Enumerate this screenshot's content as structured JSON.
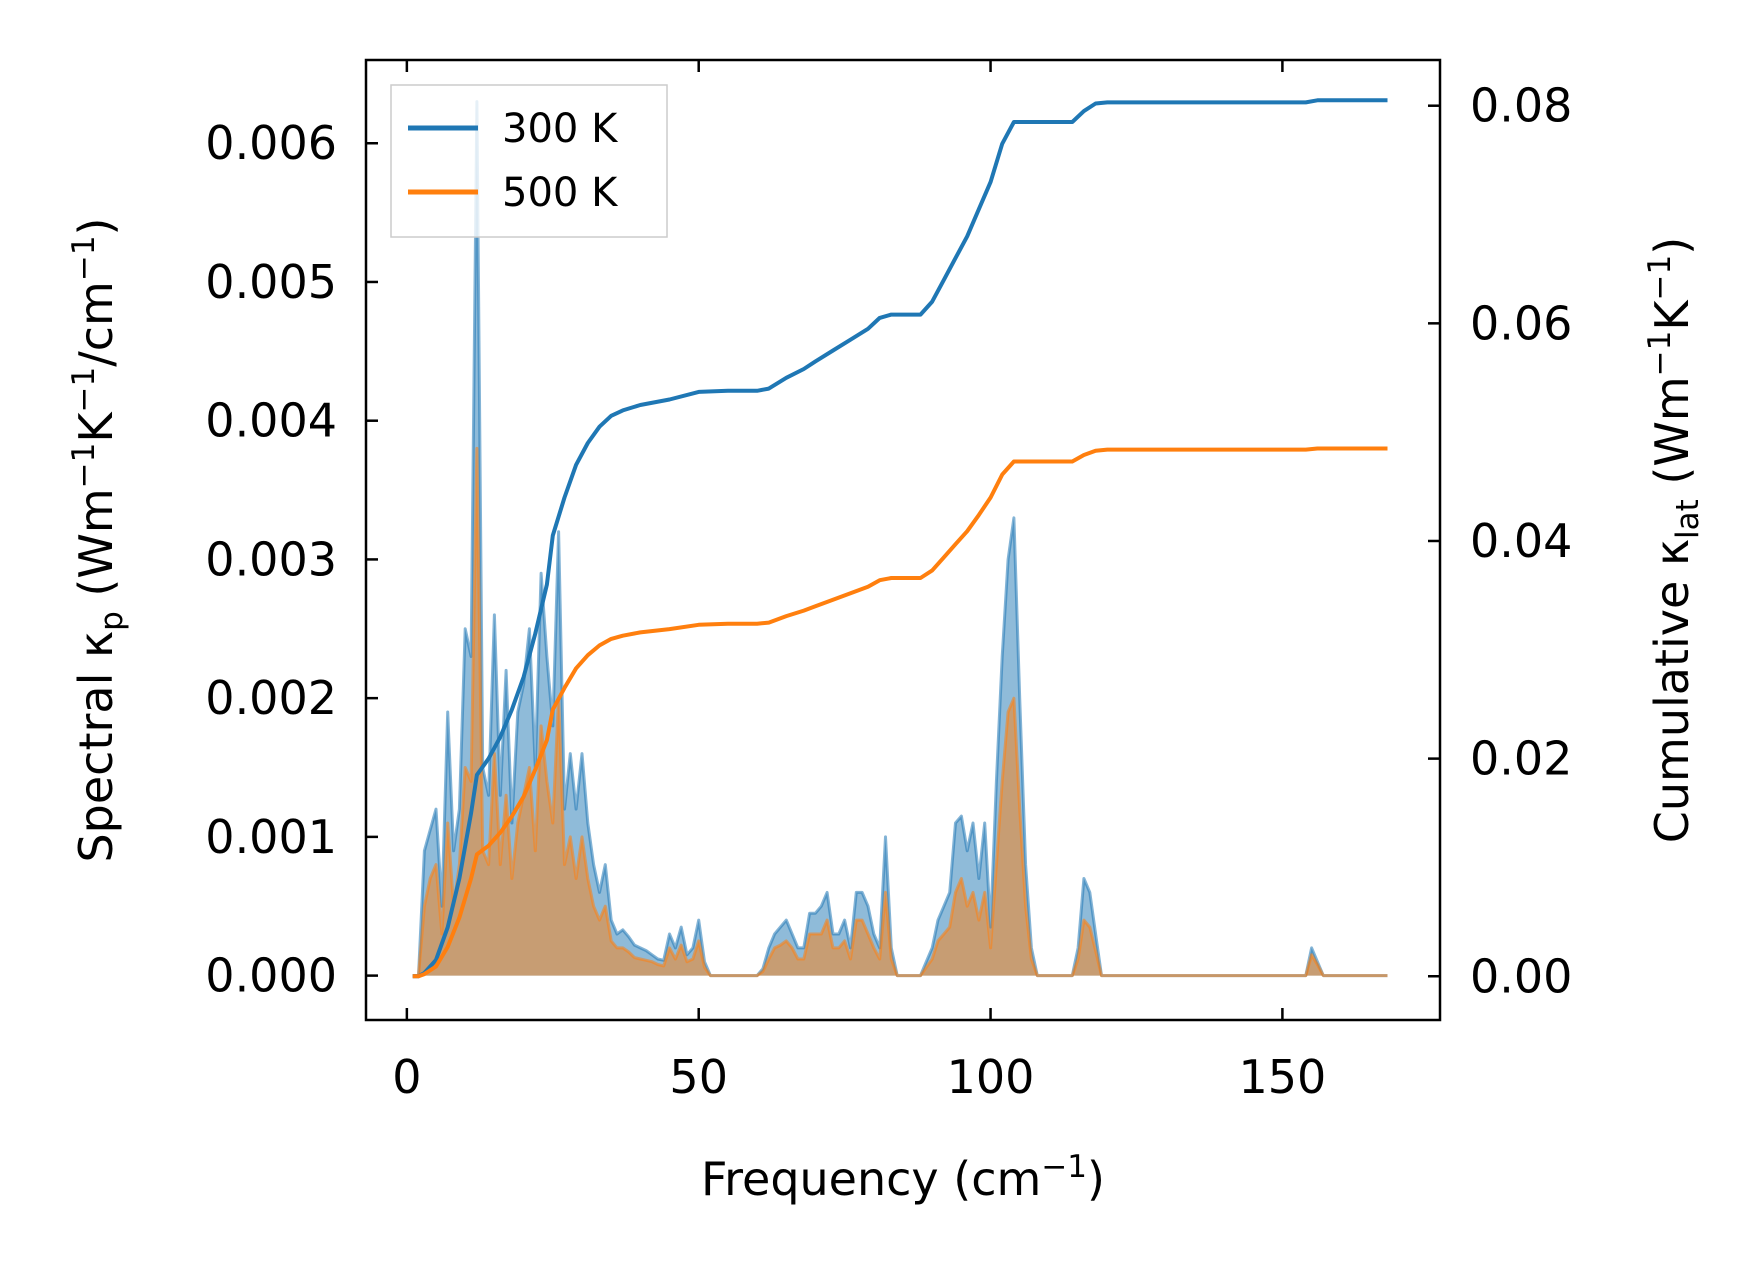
{
  "chart_data": {
    "type": "line",
    "xlabel": {
      "text": "Frequency (cm",
      "sup": "−1",
      "tail": ")"
    },
    "ylabel_left": {
      "t1": "Spectral κ",
      "s1": "p",
      "t2": " (Wm",
      "p1": "−1",
      "t3": "K",
      "p2": "−1",
      "t4": "/cm",
      "p3": "−1",
      "t5": ")"
    },
    "ylabel_right": {
      "t1": "Cumulative κ",
      "s1": "lat",
      "t2": " (Wm",
      "p1": "−1",
      "t3": "K",
      "p2": "−1",
      "t4": ")"
    },
    "xlim": [
      -7,
      177
    ],
    "ylim_left": [
      -0.00032,
      0.0066
    ],
    "ylim_right": [
      -0.00402,
      0.0842
    ],
    "x_ticks": [
      0,
      50,
      100,
      150
    ],
    "x_tick_labels": [
      "0",
      "50",
      "100",
      "150"
    ],
    "y_left_ticks": [
      0,
      0.001,
      0.002,
      0.003,
      0.004,
      0.005,
      0.006
    ],
    "y_left_tick_labels": [
      "0.000",
      "0.001",
      "0.002",
      "0.003",
      "0.004",
      "0.005",
      "0.006"
    ],
    "y_right_ticks": [
      0,
      0.02,
      0.04,
      0.06,
      0.08
    ],
    "y_right_tick_labels": [
      "0.00",
      "0.02",
      "0.04",
      "0.06",
      "0.08"
    ],
    "legend": {
      "placement": "top-left",
      "entries": [
        {
          "label": "300 K",
          "color": "#1f77b4"
        },
        {
          "label": "500 K",
          "color": "#ff7f0e"
        }
      ]
    },
    "spectral_300K": [
      [
        1,
        0
      ],
      [
        2,
        0
      ],
      [
        3,
        0.0009
      ],
      [
        4,
        0.00105
      ],
      [
        5,
        0.0012
      ],
      [
        6,
        0.0005
      ],
      [
        7,
        0.0019
      ],
      [
        8,
        0.0009
      ],
      [
        9,
        0.0012
      ],
      [
        10,
        0.0025
      ],
      [
        11,
        0.0023
      ],
      [
        12,
        0.0063
      ],
      [
        13,
        0.0015
      ],
      [
        14,
        0.0013
      ],
      [
        15,
        0.0026
      ],
      [
        16,
        0.0013
      ],
      [
        17,
        0.0022
      ],
      [
        18,
        0.0011
      ],
      [
        19,
        0.0019
      ],
      [
        20,
        0.0021
      ],
      [
        21,
        0.0025
      ],
      [
        22,
        0.0015
      ],
      [
        23,
        0.0029
      ],
      [
        24,
        0.0023
      ],
      [
        25,
        0.0018
      ],
      [
        26,
        0.0032
      ],
      [
        27,
        0.0012
      ],
      [
        28,
        0.0016
      ],
      [
        29,
        0.0012
      ],
      [
        30,
        0.0016
      ],
      [
        31,
        0.0011
      ],
      [
        32,
        0.0008
      ],
      [
        33,
        0.0006
      ],
      [
        34,
        0.0008
      ],
      [
        35,
        0.0004
      ],
      [
        36,
        0.0003
      ],
      [
        37,
        0.00033
      ],
      [
        38,
        0.00028
      ],
      [
        39,
        0.00022
      ],
      [
        40,
        0.0002
      ],
      [
        41,
        0.00018
      ],
      [
        42,
        0.00015
      ],
      [
        43,
        0.00012
      ],
      [
        44,
        0.00011
      ],
      [
        45,
        0.0003
      ],
      [
        46,
        0.0002
      ],
      [
        47,
        0.00035
      ],
      [
        48,
        0.00015
      ],
      [
        49,
        0.0002
      ],
      [
        50,
        0.0004
      ],
      [
        51,
        0.0001
      ],
      [
        52,
        0
      ],
      [
        60,
        0
      ],
      [
        61,
        5e-05
      ],
      [
        62,
        0.0002
      ],
      [
        63,
        0.0003
      ],
      [
        64,
        0.00035
      ],
      [
        65,
        0.0004
      ],
      [
        66,
        0.0003
      ],
      [
        67,
        0.0002
      ],
      [
        68,
        0.0002
      ],
      [
        69,
        0.00045
      ],
      [
        70,
        0.00045
      ],
      [
        71,
        0.0005
      ],
      [
        72,
        0.0006
      ],
      [
        73,
        0.0003
      ],
      [
        74,
        0.0003
      ],
      [
        75,
        0.0004
      ],
      [
        76,
        0.0002
      ],
      [
        77,
        0.0006
      ],
      [
        78,
        0.0006
      ],
      [
        79,
        0.0005
      ],
      [
        80,
        0.0003
      ],
      [
        81,
        0.0002
      ],
      [
        82,
        0.001
      ],
      [
        83,
        0.0002
      ],
      [
        84,
        0
      ],
      [
        88,
        0
      ],
      [
        89,
        0.0001
      ],
      [
        90,
        0.0002
      ],
      [
        91,
        0.0004
      ],
      [
        92,
        0.0005
      ],
      [
        93,
        0.0006
      ],
      [
        94,
        0.0011
      ],
      [
        95,
        0.00115
      ],
      [
        96,
        0.0009
      ],
      [
        97,
        0.0011
      ],
      [
        98,
        0.0007
      ],
      [
        99,
        0.0011
      ],
      [
        100,
        0.00035
      ],
      [
        101,
        0.0014
      ],
      [
        102,
        0.0023
      ],
      [
        103,
        0.003
      ],
      [
        104,
        0.0033
      ],
      [
        105,
        0.002
      ],
      [
        106,
        0.0008
      ],
      [
        107,
        0.0002
      ],
      [
        108,
        0
      ],
      [
        114,
        0
      ],
      [
        115,
        0.0002
      ],
      [
        116,
        0.0007
      ],
      [
        117,
        0.0006
      ],
      [
        118,
        0.0003
      ],
      [
        119,
        0
      ],
      [
        154,
        0
      ],
      [
        155,
        0.0002
      ],
      [
        156,
        0.0001
      ],
      [
        157,
        0
      ],
      [
        168,
        0
      ]
    ],
    "spectral_500K": [
      [
        1,
        0
      ],
      [
        2,
        0
      ],
      [
        3,
        0.0005
      ],
      [
        4,
        0.0007
      ],
      [
        5,
        0.0008
      ],
      [
        6,
        0.0003
      ],
      [
        7,
        0.0011
      ],
      [
        8,
        0.0005
      ],
      [
        9,
        0.0008
      ],
      [
        10,
        0.0015
      ],
      [
        11,
        0.0014
      ],
      [
        12,
        0.0038
      ],
      [
        13,
        0.0009
      ],
      [
        14,
        0.0008
      ],
      [
        15,
        0.0016
      ],
      [
        16,
        0.0008
      ],
      [
        17,
        0.0013
      ],
      [
        18,
        0.0007
      ],
      [
        19,
        0.0011
      ],
      [
        20,
        0.0013
      ],
      [
        21,
        0.0015
      ],
      [
        22,
        0.0009
      ],
      [
        23,
        0.0018
      ],
      [
        24,
        0.0014
      ],
      [
        25,
        0.0011
      ],
      [
        26,
        0.002
      ],
      [
        27,
        0.0008
      ],
      [
        28,
        0.001
      ],
      [
        29,
        0.0007
      ],
      [
        30,
        0.001
      ],
      [
        31,
        0.0007
      ],
      [
        32,
        0.0005
      ],
      [
        33,
        0.0004
      ],
      [
        34,
        0.0005
      ],
      [
        35,
        0.00025
      ],
      [
        36,
        0.0002
      ],
      [
        37,
        0.0002
      ],
      [
        38,
        0.00017
      ],
      [
        39,
        0.00013
      ],
      [
        40,
        0.00012
      ],
      [
        41,
        0.00011
      ],
      [
        42,
        0.0001
      ],
      [
        43,
        8e-05
      ],
      [
        44,
        7e-05
      ],
      [
        45,
        0.0002
      ],
      [
        46,
        0.00012
      ],
      [
        47,
        0.00022
      ],
      [
        48,
        0.0001
      ],
      [
        49,
        0.00012
      ],
      [
        50,
        0.00025
      ],
      [
        51,
        6e-05
      ],
      [
        52,
        0
      ],
      [
        60,
        0
      ],
      [
        61,
        3e-05
      ],
      [
        62,
        0.00012
      ],
      [
        63,
        0.0002
      ],
      [
        64,
        0.00022
      ],
      [
        65,
        0.00025
      ],
      [
        66,
        0.0002
      ],
      [
        67,
        0.00012
      ],
      [
        68,
        0.00012
      ],
      [
        69,
        0.0003
      ],
      [
        70,
        0.0003
      ],
      [
        71,
        0.0003
      ],
      [
        72,
        0.0004
      ],
      [
        73,
        0.0002
      ],
      [
        74,
        0.0002
      ],
      [
        75,
        0.00025
      ],
      [
        76,
        0.00012
      ],
      [
        77,
        0.0004
      ],
      [
        78,
        0.0004
      ],
      [
        79,
        0.0003
      ],
      [
        80,
        0.0002
      ],
      [
        81,
        0.00012
      ],
      [
        82,
        0.0006
      ],
      [
        83,
        0.00012
      ],
      [
        84,
        0
      ],
      [
        88,
        0
      ],
      [
        89,
        6e-05
      ],
      [
        90,
        0.00012
      ],
      [
        91,
        0.00025
      ],
      [
        92,
        0.0003
      ],
      [
        93,
        0.00035
      ],
      [
        94,
        0.0006
      ],
      [
        95,
        0.0007
      ],
      [
        96,
        0.0005
      ],
      [
        97,
        0.0006
      ],
      [
        98,
        0.0004
      ],
      [
        99,
        0.0006
      ],
      [
        100,
        0.0002
      ],
      [
        101,
        0.0008
      ],
      [
        102,
        0.0014
      ],
      [
        103,
        0.0019
      ],
      [
        104,
        0.002
      ],
      [
        105,
        0.0012
      ],
      [
        106,
        0.0005
      ],
      [
        107,
        0.00012
      ],
      [
        108,
        0
      ],
      [
        114,
        0
      ],
      [
        115,
        0.00012
      ],
      [
        116,
        0.0004
      ],
      [
        117,
        0.00035
      ],
      [
        118,
        0.00018
      ],
      [
        119,
        0
      ],
      [
        154,
        0
      ],
      [
        155,
        0.00015
      ],
      [
        156,
        8e-05
      ],
      [
        157,
        0
      ],
      [
        168,
        0
      ]
    ],
    "cumulative_300K": [
      [
        1,
        0
      ],
      [
        2,
        0
      ],
      [
        3,
        0.0003
      ],
      [
        5,
        0.0015
      ],
      [
        7,
        0.0045
      ],
      [
        9,
        0.009
      ],
      [
        11,
        0.015
      ],
      [
        12,
        0.0185
      ],
      [
        14,
        0.02
      ],
      [
        16,
        0.022
      ],
      [
        18,
        0.0245
      ],
      [
        20,
        0.0275
      ],
      [
        22,
        0.0315
      ],
      [
        24,
        0.036
      ],
      [
        25,
        0.0405
      ],
      [
        27,
        0.044
      ],
      [
        29,
        0.047
      ],
      [
        31,
        0.049
      ],
      [
        33,
        0.0505
      ],
      [
        35,
        0.0515
      ],
      [
        37,
        0.052
      ],
      [
        40,
        0.0525
      ],
      [
        45,
        0.053
      ],
      [
        50,
        0.0537
      ],
      [
        55,
        0.0538
      ],
      [
        60,
        0.0538
      ],
      [
        62,
        0.054
      ],
      [
        65,
        0.055
      ],
      [
        68,
        0.0558
      ],
      [
        70,
        0.0565
      ],
      [
        73,
        0.0575
      ],
      [
        76,
        0.0585
      ],
      [
        79,
        0.0595
      ],
      [
        81,
        0.0605
      ],
      [
        83,
        0.0608
      ],
      [
        85,
        0.0608
      ],
      [
        88,
        0.0608
      ],
      [
        90,
        0.062
      ],
      [
        92,
        0.064
      ],
      [
        94,
        0.066
      ],
      [
        96,
        0.068
      ],
      [
        98,
        0.0705
      ],
      [
        100,
        0.073
      ],
      [
        102,
        0.0765
      ],
      [
        104,
        0.0785
      ],
      [
        106,
        0.0785
      ],
      [
        110,
        0.0785
      ],
      [
        114,
        0.0785
      ],
      [
        116,
        0.0795
      ],
      [
        118,
        0.0802
      ],
      [
        120,
        0.0803
      ],
      [
        125,
        0.0803
      ],
      [
        150,
        0.0803
      ],
      [
        154,
        0.0803
      ],
      [
        156,
        0.0805
      ],
      [
        168,
        0.0805
      ]
    ],
    "cumulative_500K": [
      [
        1,
        0
      ],
      [
        2,
        0
      ],
      [
        3,
        0.0002
      ],
      [
        5,
        0.0009
      ],
      [
        7,
        0.0027
      ],
      [
        9,
        0.0054
      ],
      [
        11,
        0.009
      ],
      [
        12,
        0.0112
      ],
      [
        14,
        0.012
      ],
      [
        16,
        0.0132
      ],
      [
        18,
        0.0147
      ],
      [
        20,
        0.0165
      ],
      [
        22,
        0.019
      ],
      [
        24,
        0.0217
      ],
      [
        25,
        0.0245
      ],
      [
        27,
        0.0265
      ],
      [
        29,
        0.0283
      ],
      [
        31,
        0.0295
      ],
      [
        33,
        0.0304
      ],
      [
        35,
        0.031
      ],
      [
        37,
        0.0313
      ],
      [
        40,
        0.0316
      ],
      [
        45,
        0.0319
      ],
      [
        50,
        0.0323
      ],
      [
        55,
        0.0324
      ],
      [
        60,
        0.0324
      ],
      [
        62,
        0.0325
      ],
      [
        65,
        0.0331
      ],
      [
        68,
        0.0336
      ],
      [
        70,
        0.034
      ],
      [
        73,
        0.0346
      ],
      [
        76,
        0.0352
      ],
      [
        79,
        0.0358
      ],
      [
        81,
        0.0364
      ],
      [
        83,
        0.0366
      ],
      [
        85,
        0.0366
      ],
      [
        88,
        0.0366
      ],
      [
        90,
        0.0373
      ],
      [
        92,
        0.0385
      ],
      [
        94,
        0.0397
      ],
      [
        96,
        0.0409
      ],
      [
        98,
        0.0424
      ],
      [
        100,
        0.044
      ],
      [
        102,
        0.0461
      ],
      [
        104,
        0.0473
      ],
      [
        106,
        0.0473
      ],
      [
        110,
        0.0473
      ],
      [
        114,
        0.0473
      ],
      [
        116,
        0.0479
      ],
      [
        118,
        0.0483
      ],
      [
        120,
        0.0484
      ],
      [
        125,
        0.0484
      ],
      [
        150,
        0.0484
      ],
      [
        154,
        0.0484
      ],
      [
        156,
        0.0485
      ],
      [
        168,
        0.0485
      ]
    ]
  }
}
